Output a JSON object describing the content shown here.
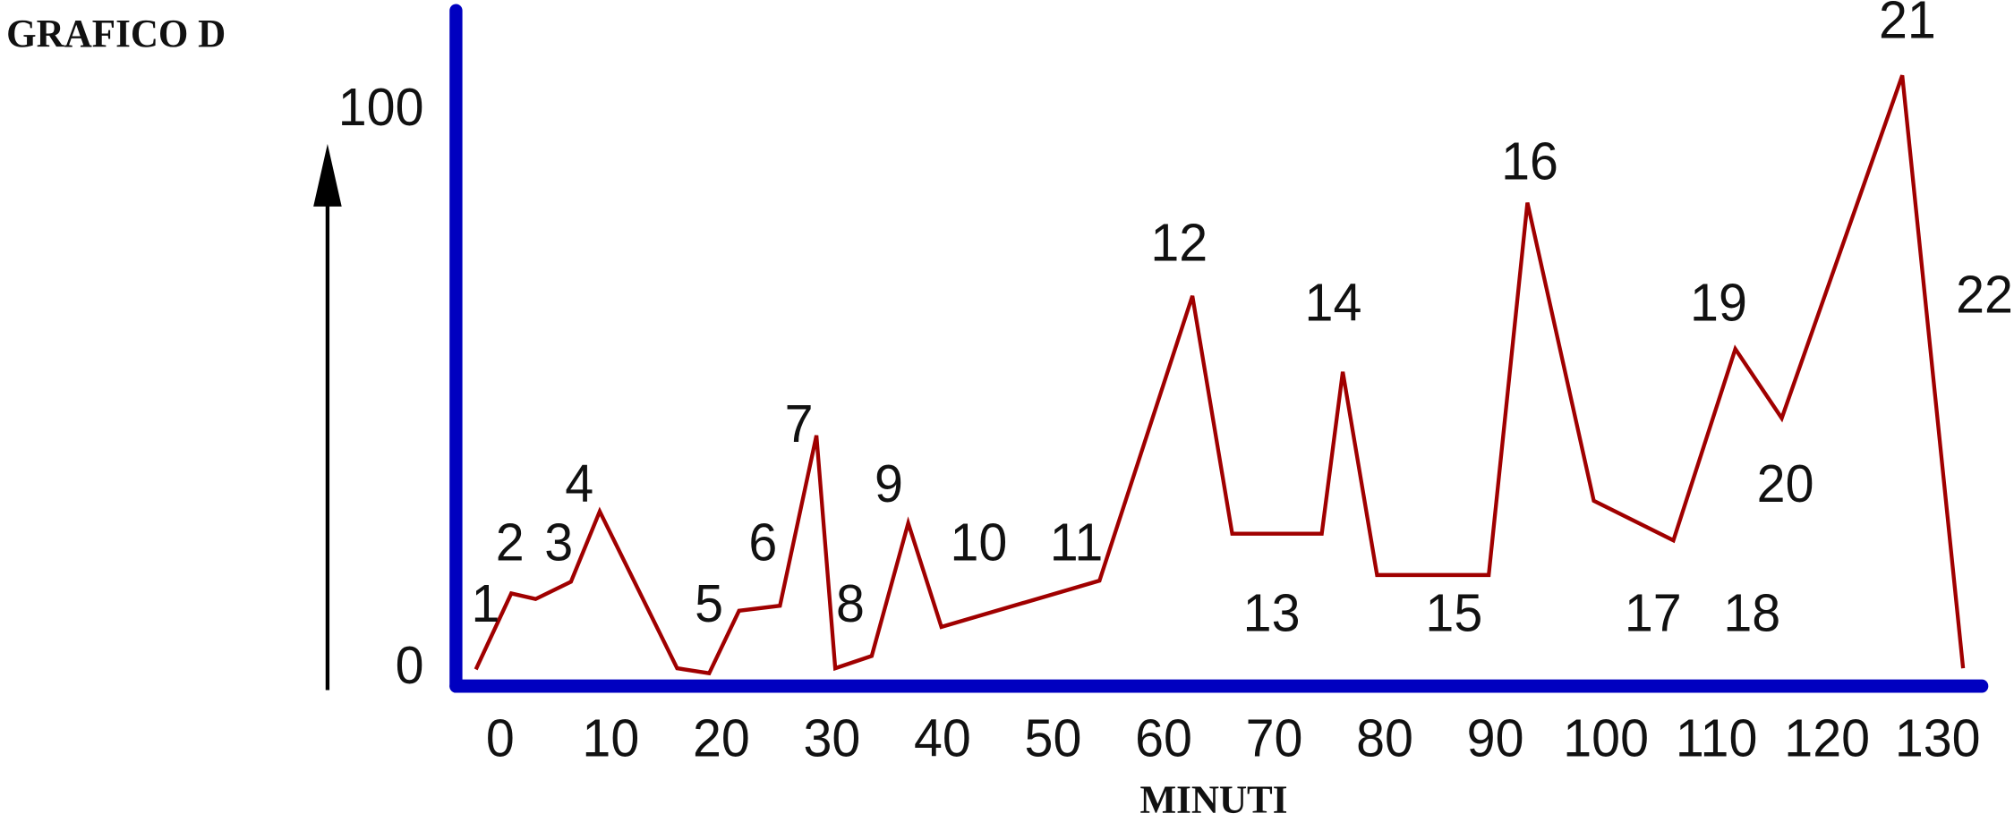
{
  "chart_data": {
    "type": "line",
    "title": "GRAFICO D",
    "x_label": "MINUTI",
    "x": [
      -2.2,
      1.0,
      3.2,
      6.4,
      9.0,
      16.0,
      18.9,
      21.6,
      25.3,
      28.6,
      30.3,
      33.6,
      36.9,
      39.9,
      54.2,
      62.6,
      66.2,
      74.3,
      76.2,
      79.3,
      89.4,
      92.9,
      98.9,
      106.1,
      111.7,
      115.9,
      126.8,
      132.3
    ],
    "series": [
      {
        "color": "#a00000",
        "values": [
          0,
          13.6,
          12.6,
          15.7,
          28.3,
          0.2,
          -0.7,
          10.5,
          11.4,
          41.9,
          0.2,
          2.4,
          26.2,
          7.6,
          15.9,
          66.9,
          24.3,
          24.3,
          53.3,
          16.9,
          16.9,
          83.6,
          30.2,
          23.1,
          57.4,
          45.0,
          106.4,
          0.2
        ]
      }
    ],
    "annotations": [
      "1",
      "2",
      "3",
      "4",
      "5",
      "6",
      "7",
      "8",
      "9",
      "10",
      "11",
      "12",
      "13",
      "14",
      "15",
      "16",
      "17",
      "18",
      "19",
      "20",
      "21",
      "22"
    ],
    "xlim": [
      -4,
      134
    ],
    "ylim": [
      -3,
      118
    ],
    "xticks": [
      0,
      10,
      20,
      30,
      40,
      50,
      60,
      70,
      80,
      90,
      100,
      110,
      120,
      130
    ],
    "yticks": [
      0,
      100
    ],
    "axis_color": "#0000c0",
    "grid": false
  }
}
